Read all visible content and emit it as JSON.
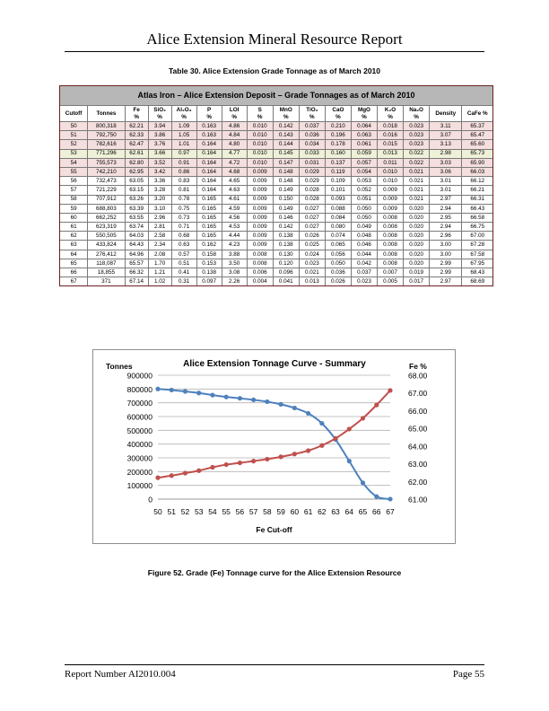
{
  "header": {
    "title": "Alice Extension Mineral Resource Report"
  },
  "table": {
    "caption": "Table 30. Alice Extension Grade Tonnage as of March 2010",
    "title": "Atlas Iron – Alice Extension Deposit – Grade Tonnages as of March 2010",
    "columns": [
      {
        "name": "Cutoff",
        "unit": ""
      },
      {
        "name": "Tonnes",
        "unit": ""
      },
      {
        "name": "Fe",
        "unit": "%"
      },
      {
        "name": "SiO₂",
        "unit": "%"
      },
      {
        "name": "Al₂O₃",
        "unit": "%"
      },
      {
        "name": "P",
        "unit": "%"
      },
      {
        "name": "LOI",
        "unit": "%"
      },
      {
        "name": "S",
        "unit": "%"
      },
      {
        "name": "MnO",
        "unit": "%"
      },
      {
        "name": "TiO₂",
        "unit": "%"
      },
      {
        "name": "CaO",
        "unit": "%"
      },
      {
        "name": "MgO",
        "unit": "%"
      },
      {
        "name": "K₂O",
        "unit": "%"
      },
      {
        "name": "Na₂O",
        "unit": "%"
      },
      {
        "name": "Density",
        "unit": ""
      },
      {
        "name": "CaFe %",
        "unit": ""
      }
    ],
    "rows": [
      [
        "50",
        "800,318",
        "62.21",
        "3.94",
        "1.09",
        "0.163",
        "4.86",
        "0.010",
        "0.142",
        "0.037",
        "0.210",
        "0.064",
        "0.018",
        "0.023",
        "3.11",
        "65.37"
      ],
      [
        "51",
        "792,750",
        "62.33",
        "3.86",
        "1.05",
        "0.163",
        "4.84",
        "0.010",
        "0.143",
        "0.036",
        "0.196",
        "0.063",
        "0.016",
        "0.023",
        "3.07",
        "65.47"
      ],
      [
        "52",
        "782,616",
        "62.47",
        "3.76",
        "1.01",
        "0.164",
        "4.80",
        "0.010",
        "0.144",
        "0.034",
        "0.178",
        "0.061",
        "0.015",
        "0.023",
        "3.13",
        "65.60"
      ],
      [
        "53",
        "771,296",
        "62.61",
        "3.66",
        "0.97",
        "0.164",
        "4.77",
        "0.010",
        "0.145",
        "0.033",
        "0.160",
        "0.059",
        "0.013",
        "0.022",
        "2.98",
        "65.73"
      ],
      [
        "54",
        "755,573",
        "62.80",
        "3.52",
        "0.91",
        "0.164",
        "4.72",
        "0.010",
        "0.147",
        "0.031",
        "0.137",
        "0.057",
        "0.011",
        "0.022",
        "3.03",
        "65.90"
      ],
      [
        "55",
        "742,210",
        "62.95",
        "3.42",
        "0.86",
        "0.164",
        "4.68",
        "0.009",
        "0.148",
        "0.029",
        "0.119",
        "0.054",
        "0.010",
        "0.021",
        "3.06",
        "66.03"
      ],
      [
        "56",
        "732,473",
        "63.05",
        "3.36",
        "0.83",
        "0.164",
        "4.65",
        "0.009",
        "0.148",
        "0.029",
        "0.109",
        "0.053",
        "0.010",
        "0.021",
        "3.01",
        "66.12"
      ],
      [
        "57",
        "721,229",
        "63.15",
        "3.28",
        "0.81",
        "0.164",
        "4.63",
        "0.009",
        "0.149",
        "0.028",
        "0.101",
        "0.052",
        "0.009",
        "0.021",
        "3.01",
        "66.21"
      ],
      [
        "58",
        "707,912",
        "63.26",
        "3.20",
        "0.78",
        "0.165",
        "4.61",
        "0.009",
        "0.150",
        "0.028",
        "0.093",
        "0.051",
        "0.009",
        "0.021",
        "2.97",
        "66.31"
      ],
      [
        "59",
        "688,803",
        "63.39",
        "3.10",
        "0.75",
        "0.165",
        "4.59",
        "0.009",
        "0.149",
        "0.027",
        "0.088",
        "0.050",
        "0.009",
        "0.020",
        "2.94",
        "66.43"
      ],
      [
        "60",
        "662,252",
        "63.55",
        "2.96",
        "0.73",
        "0.165",
        "4.56",
        "0.009",
        "0.146",
        "0.027",
        "0.084",
        "0.050",
        "0.008",
        "0.020",
        "2.95",
        "66.58"
      ],
      [
        "61",
        "623,319",
        "63.74",
        "2.81",
        "0.71",
        "0.165",
        "4.53",
        "0.009",
        "0.142",
        "0.027",
        "0.080",
        "0.049",
        "0.008",
        "0.020",
        "2.94",
        "66.75"
      ],
      [
        "62",
        "550,505",
        "64.03",
        "2.58",
        "0.68",
        "0.165",
        "4.44",
        "0.009",
        "0.138",
        "0.026",
        "0.074",
        "0.048",
        "0.008",
        "0.020",
        "2.96",
        "67.00"
      ],
      [
        "63",
        "433,824",
        "64.43",
        "2.34",
        "0.63",
        "0.162",
        "4.23",
        "0.009",
        "0.138",
        "0.025",
        "0.065",
        "0.046",
        "0.008",
        "0.020",
        "3.00",
        "67.28"
      ],
      [
        "64",
        "276,412",
        "64.96",
        "2.08",
        "0.57",
        "0.158",
        "3.88",
        "0.008",
        "0.130",
        "0.024",
        "0.056",
        "0.044",
        "0.008",
        "0.020",
        "3.00",
        "67.58"
      ],
      [
        "65",
        "118,087",
        "65.57",
        "1.70",
        "0.51",
        "0.153",
        "3.50",
        "0.008",
        "0.120",
        "0.023",
        "0.050",
        "0.042",
        "0.008",
        "0.020",
        "2.99",
        "67.95"
      ],
      [
        "66",
        "18,855",
        "66.32",
        "1.21",
        "0.41",
        "0.138",
        "3.08",
        "0.006",
        "0.096",
        "0.021",
        "0.036",
        "0.037",
        "0.007",
        "0.019",
        "2.99",
        "68.43"
      ],
      [
        "67",
        "371",
        "67.14",
        "1.02",
        "0.31",
        "0.097",
        "2.26",
        "0.004",
        "0.041",
        "0.013",
        "0.026",
        "0.023",
        "0.005",
        "0.017",
        "2.97",
        "68.69"
      ]
    ],
    "highlight_rows": [
      0,
      1,
      2,
      3,
      4,
      5
    ],
    "colors": {
      "title_bg": "#b7b7b7",
      "border": "#6b2020",
      "row_pink": "#f4dede",
      "row_green": "#eef0d8"
    }
  },
  "chart_data": {
    "type": "line",
    "title": "Alice Extension Tonnage Curve - Summary",
    "xlabel": "Fe Cut-off",
    "ylabel": "Tonnes",
    "y2label": "Fe %",
    "x": [
      50,
      51,
      52,
      53,
      54,
      55,
      56,
      57,
      58,
      59,
      60,
      61,
      62,
      63,
      64,
      65,
      66,
      67
    ],
    "ylim": [
      0,
      900000
    ],
    "yticks": [
      "0",
      "100000",
      "200000",
      "300000",
      "400000",
      "500000",
      "600000",
      "700000",
      "800000",
      "900000"
    ],
    "y2lim": [
      61.0,
      68.0
    ],
    "y2ticks": [
      "61.00",
      "62.00",
      "63.00",
      "64.00",
      "65.00",
      "66.00",
      "67.00",
      "68.00"
    ],
    "grid": true,
    "legend": "none",
    "series": [
      {
        "axis": "left",
        "color": "#4f81bd",
        "values": [
          800318,
          792750,
          782616,
          771296,
          755573,
          742210,
          732473,
          721229,
          707912,
          688803,
          662252,
          623319,
          550505,
          433824,
          276412,
          118087,
          18855,
          371
        ]
      },
      {
        "axis": "right",
        "color": "#c0504d",
        "values": [
          62.21,
          62.33,
          62.47,
          62.61,
          62.8,
          62.95,
          63.05,
          63.15,
          63.26,
          63.39,
          63.55,
          63.74,
          64.03,
          64.43,
          64.96,
          65.57,
          66.32,
          67.14
        ]
      }
    ]
  },
  "figure": {
    "caption": "Figure 52. Grade (Fe) Tonnage curve for the Alice Extension Resource"
  },
  "footer": {
    "left": "Report Number AI2010.004",
    "right": "Page 55"
  }
}
